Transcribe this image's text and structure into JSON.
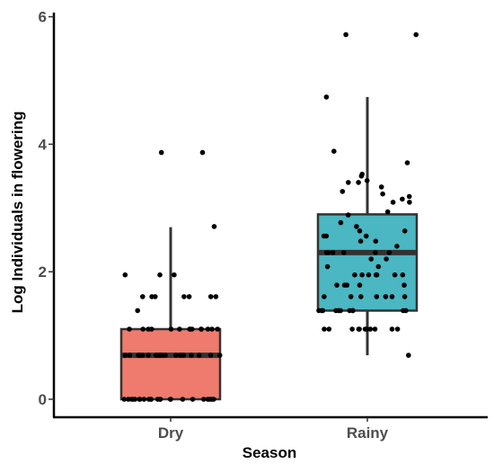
{
  "chart_data": {
    "type": "box",
    "xlabel": "Season",
    "ylabel": "Log Individuals in flowering",
    "ylim": [
      -0.3,
      6
    ],
    "yticks": [
      0,
      2,
      4,
      6
    ],
    "legend": "none",
    "grid": false,
    "categories": [
      "Dry",
      "Rainy"
    ],
    "boxes": [
      {
        "category": "Dry",
        "color": "#ee7b6e",
        "q1": 0,
        "median": 0.69,
        "q3": 1.1,
        "whisker_low": 0,
        "whisker_high": 2.7,
        "outliers": [
          3.87,
          3.87
        ],
        "points": [
          0,
          0,
          0,
          0,
          0,
          0,
          0,
          0,
          0,
          0,
          0,
          0,
          0,
          0,
          0,
          0,
          0,
          0,
          0,
          0,
          0,
          0,
          0,
          0,
          0.69,
          0.69,
          0.69,
          0.69,
          0.69,
          0.69,
          0.69,
          0.69,
          0.69,
          0.69,
          0.69,
          0.69,
          0.69,
          0.69,
          0.69,
          0.69,
          0.69,
          0.69,
          0.69,
          0.69,
          0.69,
          0.69,
          0.69,
          0.69,
          1.1,
          1.1,
          1.1,
          1.1,
          1.1,
          1.1,
          1.1,
          1.1,
          1.1,
          1.1,
          1.1,
          1.1,
          1.1,
          1.1,
          1.39,
          1.61,
          1.61,
          1.61,
          1.61,
          1.61,
          1.61,
          1.61,
          1.95,
          1.95,
          1.95,
          2.71,
          3.87,
          3.87
        ]
      },
      {
        "category": "Rainy",
        "color": "#4ab7c2",
        "q1": 1.39,
        "median": 2.3,
        "q3": 2.9,
        "whisker_low": 0.69,
        "whisker_high": 4.74,
        "outliers": [
          5.72,
          5.72
        ],
        "points": [
          0.69,
          1.1,
          1.1,
          1.1,
          1.1,
          1.1,
          1.1,
          1.1,
          1.1,
          1.1,
          1.1,
          1.1,
          1.39,
          1.39,
          1.39,
          1.39,
          1.39,
          1.39,
          1.39,
          1.39,
          1.39,
          1.39,
          1.39,
          1.61,
          1.61,
          1.61,
          1.61,
          1.61,
          1.61,
          1.61,
          1.79,
          1.79,
          1.79,
          1.79,
          1.79,
          1.95,
          1.95,
          1.95,
          1.95,
          1.95,
          1.95,
          1.95,
          2.08,
          2.08,
          2.2,
          2.2,
          2.3,
          2.3,
          2.3,
          2.3,
          2.3,
          2.3,
          2.4,
          2.48,
          2.48,
          2.56,
          2.56,
          2.56,
          2.64,
          2.64,
          2.71,
          2.77,
          2.89,
          2.94,
          3.09,
          3.09,
          3.14,
          3.18,
          3.22,
          3.26,
          3.33,
          3.4,
          3.4,
          3.43,
          3.5,
          3.53,
          3.71,
          3.89,
          4.74,
          5.72,
          5.72
        ]
      }
    ]
  }
}
